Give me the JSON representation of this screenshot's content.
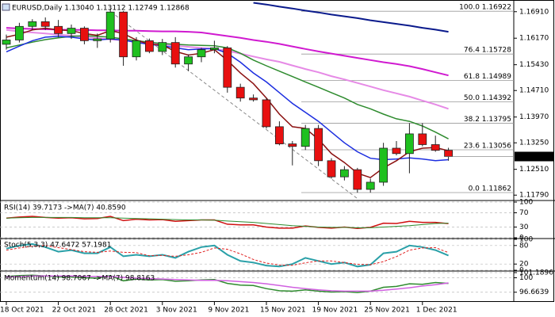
{
  "chart_data": [
    {
      "type": "candlestick",
      "title": "EURUSD,Daily  1.13040 1.13112 1.12749 1.12868",
      "categories": [
        "18 Oct 2021",
        null,
        null,
        null,
        "22 Oct 2021",
        null,
        null,
        null,
        "28 Oct 2021",
        null,
        null,
        null,
        "3 Nov 2021",
        null,
        null,
        null,
        "9 Nov 2021",
        null,
        null,
        null,
        "15 Nov 2021",
        null,
        null,
        null,
        "19 Nov 2021",
        null,
        null,
        null,
        "25 Nov 2021",
        null,
        null,
        null,
        "1 Dec 2021",
        null,
        null
      ],
      "open": [
        1.16,
        1.1612,
        1.165,
        1.1663,
        1.165,
        1.163,
        1.1645,
        1.161,
        1.1615,
        1.169,
        1.1565,
        1.161,
        1.158,
        1.1605,
        1.1545,
        1.1565,
        1.1585,
        1.159,
        1.148,
        1.145,
        1.1445,
        1.137,
        1.1322,
        1.1315,
        1.1365,
        1.1275,
        1.123,
        1.125,
        1.1195,
        1.1215,
        1.131,
        1.1295,
        1.135,
        1.132,
        1.1304
      ],
      "high": [
        1.1627,
        1.166,
        1.167,
        1.1675,
        1.1668,
        1.1655,
        1.165,
        1.163,
        1.17,
        1.1693,
        1.162,
        1.1616,
        1.1615,
        1.162,
        1.1572,
        1.159,
        1.161,
        1.1595,
        1.149,
        1.146,
        1.145,
        1.1385,
        1.133,
        1.1375,
        1.1375,
        1.1282,
        1.126,
        1.1255,
        1.1225,
        1.1325,
        1.133,
        1.138,
        1.138,
        1.1345,
        1.13112
      ],
      "low": [
        1.1585,
        1.1605,
        1.164,
        1.164,
        1.162,
        1.1615,
        1.16,
        1.159,
        1.1605,
        1.154,
        1.1555,
        1.1575,
        1.157,
        1.1535,
        1.1525,
        1.155,
        1.1575,
        1.1465,
        1.144,
        1.144,
        1.1365,
        1.1318,
        1.1262,
        1.1305,
        1.126,
        1.1225,
        1.122,
        1.1186,
        1.1186,
        1.1205,
        1.129,
        1.124,
        1.1315,
        1.13,
        1.12749
      ],
      "close": [
        1.1612,
        1.165,
        1.1663,
        1.165,
        1.163,
        1.1645,
        1.161,
        1.1615,
        1.169,
        1.1565,
        1.161,
        1.158,
        1.1605,
        1.1545,
        1.1565,
        1.1585,
        1.159,
        1.148,
        1.145,
        1.1445,
        1.137,
        1.1322,
        1.1315,
        1.1365,
        1.1275,
        1.123,
        1.125,
        1.1195,
        1.1215,
        1.131,
        1.1295,
        1.135,
        1.132,
        1.1304,
        1.12868
      ],
      "up_color": "#1fc01f",
      "down_color": "#e81010",
      "last_price": 1.12868,
      "ylim": [
        1.1164,
        1.1717
      ],
      "yticks": [
        {
          "value": 1.1691,
          "label": "1.16910"
        },
        {
          "value": 1.1617,
          "label": "1.16170"
        },
        {
          "value": 1.1543,
          "label": "1.15430"
        },
        {
          "value": 1.1471,
          "label": "1.14710"
        },
        {
          "value": 1.1397,
          "label": "1.13970"
        },
        {
          "value": 1.1325,
          "label": "1.13250"
        },
        {
          "value": 1.1251,
          "label": "1.12510"
        },
        {
          "value": 1.1179,
          "label": "1.11790"
        }
      ],
      "grid": false,
      "fib_levels": [
        {
          "value": 1.16922,
          "label": "100.0 1.16922"
        },
        {
          "value": 1.15728,
          "label": "76.4 1.15728"
        },
        {
          "value": 1.14989,
          "label": "61.8 1.14989"
        },
        {
          "value": 1.14392,
          "label": "50.0 1.14392"
        },
        {
          "value": 1.13795,
          "label": "38.2 1.13795"
        },
        {
          "value": 1.13056,
          "label": "23.6 1.13056"
        },
        {
          "value": 1.11862,
          "label": "0.0 1.11862"
        }
      ],
      "series": [
        {
          "color": "#0a1a8c",
          "width": 2,
          "values": [
            null,
            null,
            null,
            null,
            null,
            null,
            null,
            null,
            null,
            null,
            null,
            null,
            null,
            null,
            null,
            null,
            null,
            null,
            null,
            1.1716,
            1.1711,
            1.1705,
            1.17,
            1.1694,
            1.1689,
            1.1683,
            1.1678,
            1.1673,
            1.1667,
            1.1662,
            1.1657,
            1.1652,
            1.1646,
            1.1641,
            1.1635
          ]
        },
        {
          "color": "#d01ad0",
          "width": 2,
          "values": [
            1.1646,
            1.1644,
            1.1643,
            1.1642,
            1.1641,
            1.164,
            1.164,
            1.1639,
            1.1639,
            1.1638,
            1.1638,
            1.1637,
            1.1636,
            1.1636,
            1.1635,
            1.1633,
            1.1628,
            1.1623,
            1.1618,
            1.1612,
            1.1607,
            1.1601,
            1.1594,
            1.1587,
            1.158,
            1.1574,
            1.1568,
            1.1562,
            1.1556,
            1.155,
            1.1545,
            1.1539,
            1.1531,
            1.1522,
            1.1513
          ]
        },
        {
          "color": "#e68ae6",
          "width": 2,
          "values": [
            1.164,
            1.1636,
            1.1633,
            1.163,
            1.1627,
            1.1624,
            1.162,
            1.1617,
            1.1614,
            1.1611,
            1.1607,
            1.1603,
            1.1599,
            1.1596,
            1.1593,
            1.159,
            1.1587,
            1.1582,
            1.1574,
            1.1566,
            1.1558,
            1.1551,
            1.1541,
            1.1531,
            1.1522,
            1.1511,
            1.1502,
            1.1492,
            1.1482,
            1.1472,
            1.1463,
            1.1454,
            1.1443,
            1.1432,
            1.142
          ]
        },
        {
          "color": "#2e8b2e",
          "width": 1.5,
          "values": [
            1.159,
            1.1598,
            1.1606,
            1.1613,
            1.1618,
            1.1622,
            1.1624,
            1.1622,
            1.162,
            1.1615,
            1.161,
            1.1606,
            1.1602,
            1.16,
            1.1598,
            1.1597,
            1.1596,
            1.159,
            1.1575,
            1.1556,
            1.154,
            1.1525,
            1.151,
            1.1495,
            1.148,
            1.1465,
            1.145,
            1.1432,
            1.142,
            1.1405,
            1.1392,
            1.1385,
            1.1372,
            1.1355,
            1.1336
          ]
        },
        {
          "color": "#1c2ee0",
          "width": 1.5,
          "values": [
            1.1579,
            1.1595,
            1.161,
            1.162,
            1.1622,
            1.162,
            1.1615,
            1.1612,
            1.1615,
            1.1612,
            1.1605,
            1.16,
            1.1596,
            1.159,
            1.1585,
            1.1587,
            1.1588,
            1.1575,
            1.155,
            1.152,
            1.1495,
            1.1465,
            1.1435,
            1.141,
            1.1385,
            1.1355,
            1.1325,
            1.13,
            1.1282,
            1.1278,
            1.128,
            1.1283,
            1.128,
            1.1275,
            1.1278
          ]
        },
        {
          "color": "#8b1010",
          "width": 1.5,
          "values": [
            1.162,
            1.1628,
            1.164,
            1.1645,
            1.164,
            1.1638,
            1.163,
            1.1625,
            1.1638,
            1.163,
            1.1612,
            1.16,
            1.1598,
            1.158,
            1.157,
            1.1575,
            1.1585,
            1.1555,
            1.152,
            1.149,
            1.145,
            1.1405,
            1.137,
            1.1365,
            1.1335,
            1.1295,
            1.127,
            1.124,
            1.1228,
            1.1255,
            1.1275,
            1.13,
            1.131,
            1.1312,
            1.1303
          ]
        }
      ]
    },
    {
      "type": "line",
      "title": "RSI(14) 39.7173 ->MA(7) 40.8590",
      "ylim": [
        0,
        100
      ],
      "yticks": [
        100,
        70,
        30,
        0
      ],
      "grid": true,
      "series": [
        {
          "color": "#d01010",
          "width": 1.5,
          "values": [
            55,
            58,
            60,
            57,
            55,
            56,
            53,
            54,
            60,
            48,
            52,
            50,
            51,
            46,
            48,
            50,
            50,
            38,
            36,
            36,
            30,
            27,
            27,
            33,
            29,
            27,
            30,
            26,
            29,
            41,
            40,
            46,
            43,
            43,
            39.7173
          ]
        },
        {
          "color": "#2e8b2e",
          "width": 1,
          "values": [
            55,
            56,
            57,
            57,
            57,
            57,
            56,
            56,
            56,
            55,
            54,
            53,
            52,
            51,
            50,
            50,
            49,
            47,
            45,
            43,
            40,
            37,
            34,
            32,
            30,
            29,
            29,
            28,
            28,
            30,
            32,
            34,
            37,
            40,
            40.859
          ]
        }
      ]
    },
    {
      "type": "line",
      "title": "Stoch(5,3,3) 47.6472 57.1981",
      "ylim": [
        0,
        100
      ],
      "yticks": [
        100,
        80,
        20,
        0
      ],
      "grid": true,
      "series": [
        {
          "color": "#2aa0a8",
          "width": 2,
          "values": [
            70,
            80,
            85,
            75,
            60,
            65,
            55,
            55,
            75,
            45,
            50,
            45,
            50,
            40,
            60,
            75,
            80,
            50,
            30,
            25,
            15,
            12,
            20,
            40,
            30,
            20,
            25,
            12,
            18,
            55,
            60,
            80,
            75,
            65,
            47.6472
          ]
        },
        {
          "color": "#e02020",
          "width": 1,
          "dashed": true,
          "values": [
            65,
            72,
            78,
            80,
            73,
            67,
            60,
            58,
            62,
            58,
            57,
            47,
            48,
            45,
            50,
            58,
            72,
            68,
            53,
            35,
            23,
            17,
            16,
            24,
            30,
            30,
            25,
            19,
            18,
            28,
            44,
            65,
            72,
            73,
            57.1981
          ]
        }
      ]
    },
    {
      "type": "line",
      "title": "Momentum(14) 98.7067 ->MA(7) 98.8163",
      "ylim": [
        94.6,
        101.1896
      ],
      "yticks": [
        101.1896,
        100,
        96.6639
      ],
      "grid": true,
      "series": [
        {
          "color": "#2e8b2e",
          "width": 1.5,
          "values": [
            100.3,
            100.5,
            100.6,
            100.4,
            100.2,
            100.2,
            100.0,
            99.9,
            100.5,
            99.3,
            99.7,
            99.5,
            99.6,
            99.2,
            99.3,
            99.5,
            99.6,
            98.7,
            98.3,
            98.2,
            97.5,
            97.0,
            96.9,
            97.2,
            96.9,
            96.7,
            96.8,
            96.6,
            96.9,
            97.8,
            98.0,
            98.6,
            98.5,
            98.9,
            98.7067
          ]
        },
        {
          "color": "#d060e0",
          "width": 1.5,
          "values": [
            100.2,
            100.3,
            100.4,
            100.4,
            100.4,
            100.4,
            100.3,
            100.3,
            100.3,
            100.1,
            99.9,
            99.8,
            99.7,
            99.6,
            99.5,
            99.4,
            99.4,
            99.3,
            99.1,
            98.9,
            98.6,
            98.2,
            97.8,
            97.5,
            97.2,
            97.0,
            96.9,
            96.9,
            96.9,
            97.1,
            97.4,
            97.7,
            98.1,
            98.4,
            98.8163
          ]
        }
      ]
    }
  ]
}
